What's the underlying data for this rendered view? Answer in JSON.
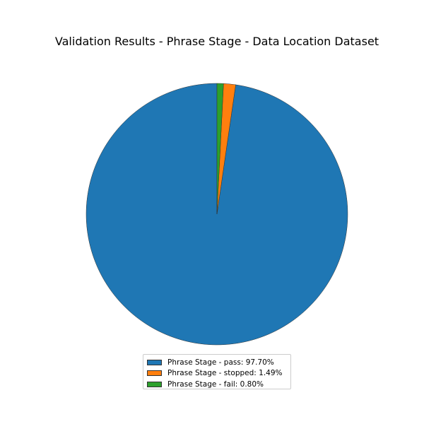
{
  "chart_data": {
    "type": "pie",
    "title": "Validation Results - Phrase Stage - Data Location Dataset",
    "slices": [
      {
        "label": "Phrase Stage - pass",
        "value": 97.7,
        "color": "#1f77b4",
        "legend_text": "Phrase Stage - pass: 97.70%"
      },
      {
        "label": "Phrase Stage - stopped",
        "value": 1.49,
        "color": "#ff7f0e",
        "legend_text": "Phrase Stage - stopped: 1.49%"
      },
      {
        "label": "Phrase Stage - fail",
        "value": 0.8,
        "color": "#2ca02c",
        "legend_text": "Phrase Stage - fail: 0.80%"
      }
    ],
    "legend_position": "bottom-center"
  }
}
